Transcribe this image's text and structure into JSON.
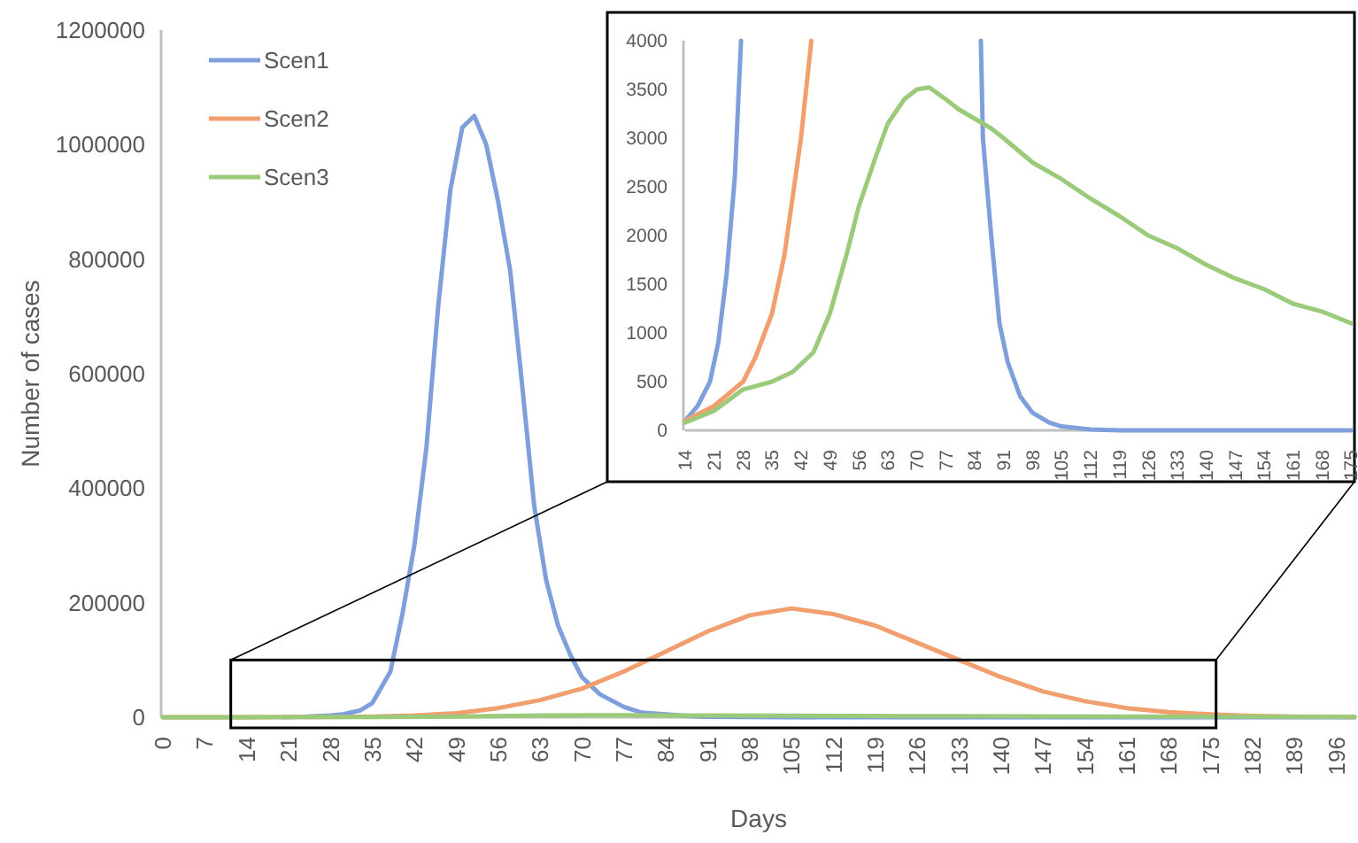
{
  "chart_data": [
    {
      "type": "line",
      "xlabel": "Days",
      "ylabel": "Number of cases",
      "xlim": [
        0,
        199
      ],
      "xticks": [
        0,
        7,
        14,
        21,
        28,
        35,
        42,
        49,
        56,
        63,
        70,
        77,
        84,
        91,
        98,
        105,
        112,
        119,
        126,
        133,
        140,
        147,
        154,
        161,
        168,
        175,
        182,
        189,
        196
      ],
      "ylim": [
        0,
        1200000
      ],
      "yticks": [
        0,
        200000,
        400000,
        600000,
        800000,
        1000000,
        1200000
      ],
      "legend": "top left",
      "series": [
        {
          "name": "Scen1",
          "color": "#7e9fdb",
          "x": [
            20,
            24,
            28,
            30,
            33,
            35,
            38,
            40,
            42,
            44,
            46,
            48,
            50,
            52,
            54,
            56,
            58,
            60,
            62,
            64,
            66,
            68,
            70,
            73,
            77,
            80,
            84,
            88,
            91,
            98,
            105,
            112,
            120,
            199
          ],
          "values": [
            0,
            1000,
            3000,
            5000,
            12000,
            25000,
            80000,
            180000,
            300000,
            470000,
            720000,
            920000,
            1030000,
            1050000,
            1000000,
            900000,
            780000,
            580000,
            370000,
            240000,
            160000,
            110000,
            70000,
            40000,
            18000,
            8000,
            5000,
            2000,
            900,
            200,
            70,
            15,
            0,
            0
          ]
        },
        {
          "name": "Scen2",
          "color": "#f19f6e",
          "x": [
            0,
            14,
            21,
            28,
            35,
            42,
            49,
            56,
            63,
            70,
            77,
            84,
            91,
            98,
            105,
            112,
            119,
            126,
            133,
            140,
            147,
            154,
            161,
            168,
            175,
            182,
            189,
            196,
            199
          ],
          "values": [
            0,
            100,
            250,
            500,
            1200,
            3000,
            7000,
            16000,
            30000,
            50000,
            80000,
            115000,
            150000,
            178000,
            190000,
            180000,
            160000,
            130000,
            100000,
            70000,
            45000,
            28000,
            16000,
            9000,
            5000,
            2500,
            1200,
            600,
            400
          ]
        },
        {
          "name": "Scen3",
          "color": "#9bcb7a",
          "x": [
            0,
            14,
            21,
            28,
            35,
            49,
            63,
            70,
            77,
            91,
            105,
            119,
            133,
            147,
            161,
            175,
            182,
            190,
            199
          ],
          "values": [
            0,
            80,
            200,
            420,
            500,
            1200,
            3150,
            3500,
            3400,
            3000,
            2580,
            2200,
            1870,
            1560,
            1300,
            1100,
            1000,
            900,
            800
          ]
        }
      ]
    },
    {
      "type": "line",
      "xlim": [
        14,
        175
      ],
      "xticks": [
        14,
        21,
        28,
        35,
        42,
        49,
        56,
        63,
        70,
        77,
        84,
        91,
        98,
        105,
        112,
        119,
        126,
        133,
        140,
        147,
        154,
        161,
        168,
        175
      ],
      "ylim": [
        0,
        4000
      ],
      "yticks": [
        0,
        500,
        1000,
        1500,
        2000,
        2500,
        3000,
        3500,
        4000
      ],
      "series": [
        {
          "color": "#7e9fdb",
          "x": [
            14,
            17,
            20,
            22,
            24,
            26,
            27.5,
            28,
            84,
            85.5,
            86,
            88,
            90,
            92,
            95,
            98,
            102,
            105,
            112,
            119,
            175
          ],
          "values": [
            100,
            250,
            500,
            900,
            1600,
            2600,
            4000,
            null,
            null,
            4000,
            3000,
            2000,
            1100,
            700,
            350,
            180,
            80,
            40,
            10,
            0,
            0
          ]
        },
        {
          "color": "#f19f6e",
          "x": [
            14,
            21,
            28,
            31,
            35,
            38,
            42,
            44.5
          ],
          "values": [
            100,
            250,
            500,
            750,
            1200,
            1800,
            3000,
            4000
          ]
        },
        {
          "color": "#9bcb7a",
          "x": [
            14,
            21,
            28,
            35,
            40,
            45,
            49,
            53,
            56,
            60,
            63,
            67,
            70,
            73,
            77,
            80,
            84,
            88,
            91,
            98,
            105,
            112,
            119,
            126,
            133,
            140,
            147,
            154,
            161,
            168,
            175
          ],
          "values": [
            80,
            200,
            420,
            500,
            600,
            800,
            1200,
            1800,
            2300,
            2800,
            3150,
            3400,
            3500,
            3520,
            3400,
            3300,
            3200,
            3100,
            3000,
            2750,
            2580,
            2380,
            2200,
            2000,
            1870,
            1700,
            1560,
            1450,
            1300,
            1220,
            1100
          ]
        }
      ]
    }
  ]
}
